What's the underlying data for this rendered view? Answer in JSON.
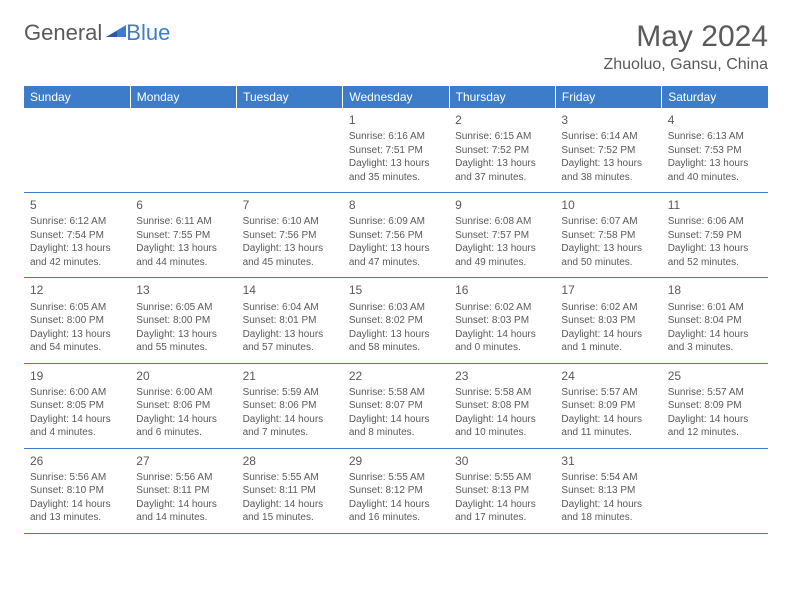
{
  "logo": {
    "text1": "General",
    "text2": "Blue"
  },
  "title": "May 2024",
  "location": "Zhuoluo, Gansu, China",
  "colors": {
    "header_bg": "#3d7cc9",
    "header_text": "#ffffff",
    "text": "#5a5a5a",
    "border": "#3d7cc9",
    "page_bg": "#ffffff"
  },
  "day_headers": [
    "Sunday",
    "Monday",
    "Tuesday",
    "Wednesday",
    "Thursday",
    "Friday",
    "Saturday"
  ],
  "weeks": [
    [
      null,
      null,
      null,
      {
        "d": "1",
        "sr": "6:16 AM",
        "ss": "7:51 PM",
        "dl": "13 hours and 35 minutes."
      },
      {
        "d": "2",
        "sr": "6:15 AM",
        "ss": "7:52 PM",
        "dl": "13 hours and 37 minutes."
      },
      {
        "d": "3",
        "sr": "6:14 AM",
        "ss": "7:52 PM",
        "dl": "13 hours and 38 minutes."
      },
      {
        "d": "4",
        "sr": "6:13 AM",
        "ss": "7:53 PM",
        "dl": "13 hours and 40 minutes."
      }
    ],
    [
      {
        "d": "5",
        "sr": "6:12 AM",
        "ss": "7:54 PM",
        "dl": "13 hours and 42 minutes."
      },
      {
        "d": "6",
        "sr": "6:11 AM",
        "ss": "7:55 PM",
        "dl": "13 hours and 44 minutes."
      },
      {
        "d": "7",
        "sr": "6:10 AM",
        "ss": "7:56 PM",
        "dl": "13 hours and 45 minutes."
      },
      {
        "d": "8",
        "sr": "6:09 AM",
        "ss": "7:56 PM",
        "dl": "13 hours and 47 minutes."
      },
      {
        "d": "9",
        "sr": "6:08 AM",
        "ss": "7:57 PM",
        "dl": "13 hours and 49 minutes."
      },
      {
        "d": "10",
        "sr": "6:07 AM",
        "ss": "7:58 PM",
        "dl": "13 hours and 50 minutes."
      },
      {
        "d": "11",
        "sr": "6:06 AM",
        "ss": "7:59 PM",
        "dl": "13 hours and 52 minutes."
      }
    ],
    [
      {
        "d": "12",
        "sr": "6:05 AM",
        "ss": "8:00 PM",
        "dl": "13 hours and 54 minutes."
      },
      {
        "d": "13",
        "sr": "6:05 AM",
        "ss": "8:00 PM",
        "dl": "13 hours and 55 minutes."
      },
      {
        "d": "14",
        "sr": "6:04 AM",
        "ss": "8:01 PM",
        "dl": "13 hours and 57 minutes."
      },
      {
        "d": "15",
        "sr": "6:03 AM",
        "ss": "8:02 PM",
        "dl": "13 hours and 58 minutes."
      },
      {
        "d": "16",
        "sr": "6:02 AM",
        "ss": "8:03 PM",
        "dl": "14 hours and 0 minutes."
      },
      {
        "d": "17",
        "sr": "6:02 AM",
        "ss": "8:03 PM",
        "dl": "14 hours and 1 minute."
      },
      {
        "d": "18",
        "sr": "6:01 AM",
        "ss": "8:04 PM",
        "dl": "14 hours and 3 minutes."
      }
    ],
    [
      {
        "d": "19",
        "sr": "6:00 AM",
        "ss": "8:05 PM",
        "dl": "14 hours and 4 minutes."
      },
      {
        "d": "20",
        "sr": "6:00 AM",
        "ss": "8:06 PM",
        "dl": "14 hours and 6 minutes."
      },
      {
        "d": "21",
        "sr": "5:59 AM",
        "ss": "8:06 PM",
        "dl": "14 hours and 7 minutes."
      },
      {
        "d": "22",
        "sr": "5:58 AM",
        "ss": "8:07 PM",
        "dl": "14 hours and 8 minutes."
      },
      {
        "d": "23",
        "sr": "5:58 AM",
        "ss": "8:08 PM",
        "dl": "14 hours and 10 minutes."
      },
      {
        "d": "24",
        "sr": "5:57 AM",
        "ss": "8:09 PM",
        "dl": "14 hours and 11 minutes."
      },
      {
        "d": "25",
        "sr": "5:57 AM",
        "ss": "8:09 PM",
        "dl": "14 hours and 12 minutes."
      }
    ],
    [
      {
        "d": "26",
        "sr": "5:56 AM",
        "ss": "8:10 PM",
        "dl": "14 hours and 13 minutes."
      },
      {
        "d": "27",
        "sr": "5:56 AM",
        "ss": "8:11 PM",
        "dl": "14 hours and 14 minutes."
      },
      {
        "d": "28",
        "sr": "5:55 AM",
        "ss": "8:11 PM",
        "dl": "14 hours and 15 minutes."
      },
      {
        "d": "29",
        "sr": "5:55 AM",
        "ss": "8:12 PM",
        "dl": "14 hours and 16 minutes."
      },
      {
        "d": "30",
        "sr": "5:55 AM",
        "ss": "8:13 PM",
        "dl": "14 hours and 17 minutes."
      },
      {
        "d": "31",
        "sr": "5:54 AM",
        "ss": "8:13 PM",
        "dl": "14 hours and 18 minutes."
      },
      null
    ]
  ],
  "labels": {
    "sunrise": "Sunrise:",
    "sunset": "Sunset:",
    "daylight": "Daylight:"
  }
}
